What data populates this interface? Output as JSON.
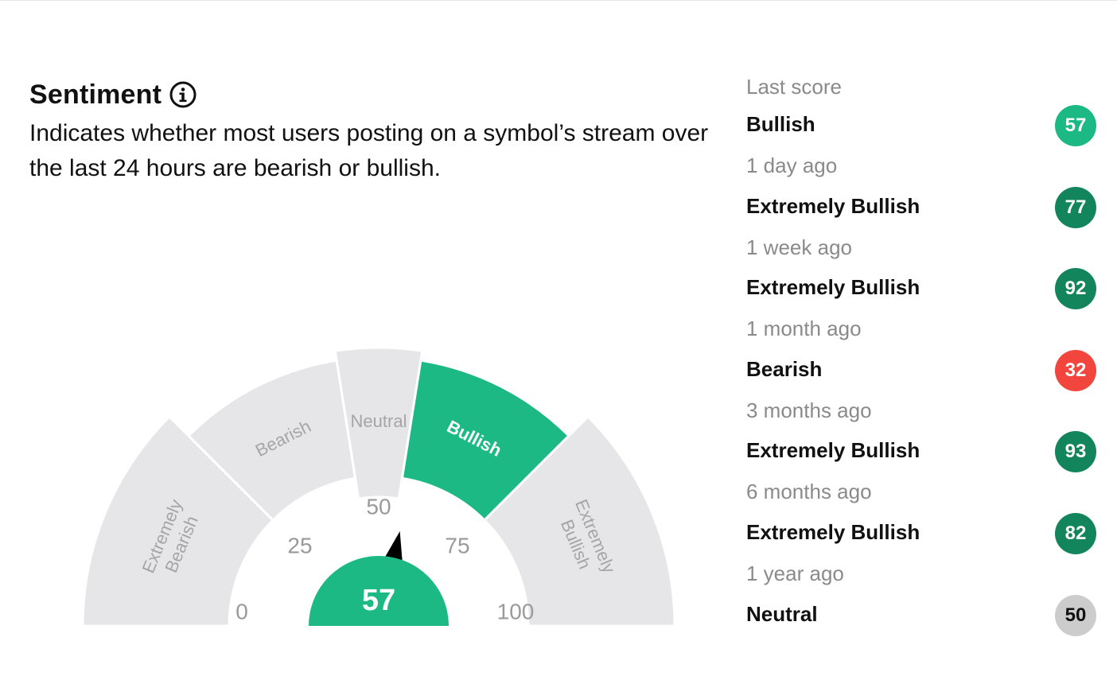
{
  "sentiment": {
    "title": "Sentiment",
    "description": "Indicates whether most users posting on a symbol’s stream over the last 24 hours are bearish or bullish."
  },
  "gauge": {
    "score": 57,
    "score_label": "57",
    "active_segment": "Bullish",
    "segments": [
      {
        "label": "Extremely Bearish",
        "line1": "Extremely",
        "line2": "Bearish",
        "range": [
          0,
          25
        ]
      },
      {
        "label": "Bearish",
        "range": [
          25,
          45
        ]
      },
      {
        "label": "Neutral",
        "range": [
          45,
          55
        ]
      },
      {
        "label": "Bullish",
        "range": [
          55,
          75
        ]
      },
      {
        "label": "Extremely Bullish",
        "line1": "Extremely",
        "line2": "Bullish",
        "range": [
          75,
          100
        ]
      }
    ],
    "ticks": [
      "0",
      "25",
      "50",
      "75",
      "100"
    ]
  },
  "history": {
    "header": "Last score",
    "items": [
      {
        "label": "Bullish",
        "score": "57",
        "color": "#1db985",
        "time": "1 day ago"
      },
      {
        "label": "Extremely Bullish",
        "score": "77",
        "color": "#13855d",
        "time": "1 week ago"
      },
      {
        "label": "Extremely Bullish",
        "score": "92",
        "color": "#13855d",
        "time": "1 month ago"
      },
      {
        "label": "Bearish",
        "score": "32",
        "color": "#f2453d",
        "time": "3 months ago"
      },
      {
        "label": "Extremely Bullish",
        "score": "93",
        "color": "#13855d",
        "time": "6 months ago"
      },
      {
        "label": "Extremely Bullish",
        "score": "82",
        "color": "#13855d",
        "time": "1 year ago"
      },
      {
        "label": "Neutral",
        "score": "50",
        "color": "#cccccc"
      }
    ]
  },
  "colors": {
    "inactive_segment": "#e6e6e9",
    "active_segment": "#1db985",
    "inactive_text": "#a5a5a8",
    "active_text": "#ffffff",
    "needle": "#000000"
  }
}
